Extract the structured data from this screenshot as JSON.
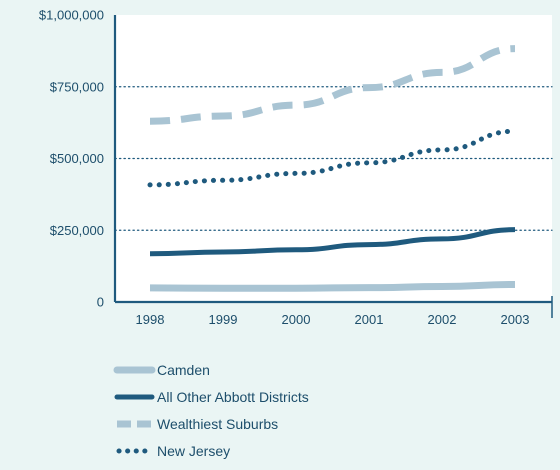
{
  "chart_data": {
    "type": "line",
    "title": "",
    "xlabel": "",
    "ylabel": "",
    "x": [
      "1998",
      "1999",
      "2000",
      "2001",
      "2002",
      "2003"
    ],
    "ylim": [
      0,
      1000000
    ],
    "y_ticks": [
      {
        "value": 0,
        "label": "0"
      },
      {
        "value": 250000,
        "label": "$250,000"
      },
      {
        "value": 500000,
        "label": "$500,000"
      },
      {
        "value": 750000,
        "label": "$750,000"
      },
      {
        "value": 1000000,
        "label": "$1,000,000"
      }
    ],
    "grid": "horizontal dotted",
    "legend_position": "bottom-left",
    "series": [
      {
        "name": "Camden",
        "values": [
          49000,
          48000,
          48000,
          50000,
          54000,
          61000
        ],
        "color": "#a9c4d3",
        "style": "solid",
        "width": 7
      },
      {
        "name": "All Other Abbott Districts",
        "values": [
          168000,
          174000,
          182000,
          200000,
          220000,
          252000
        ],
        "color": "#1f5a7e",
        "style": "solid",
        "width": 5
      },
      {
        "name": "Wealthiest Suburbs",
        "values": [
          630000,
          648000,
          686000,
          747000,
          800000,
          883000
        ],
        "color": "#a9c4d3",
        "style": "dashed",
        "width": 7
      },
      {
        "name": "New Jersey",
        "values": [
          408000,
          424000,
          448000,
          485000,
          530000,
          595000
        ],
        "color": "#1f5a7e",
        "style": "dotted",
        "width": 5
      }
    ]
  },
  "colors": {
    "background": "#eaf5f4",
    "plot_background": "#ffffff",
    "axis": "#1f5a7e",
    "text": "#1d4e6b"
  }
}
